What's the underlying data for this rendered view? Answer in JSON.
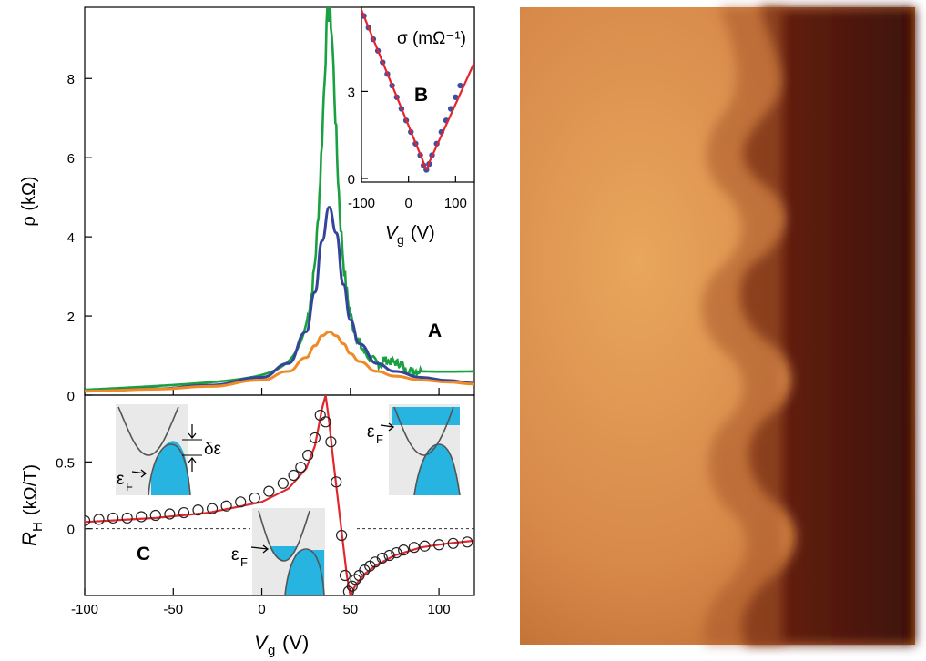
{
  "figure": {
    "photo_panel": {
      "description_colors": [
        "#e7a25a",
        "#b8652c",
        "#4a1508"
      ]
    }
  },
  "chart_data": [
    {
      "id": "A",
      "type": "line",
      "panel_label": "A",
      "xlabel": "",
      "ylabel": "ρ (kΩ)",
      "xlim": [
        -100,
        120
      ],
      "ylim": [
        0,
        9.8
      ],
      "yticks": [
        0,
        2,
        4,
        6,
        8
      ],
      "series": [
        {
          "color": "#19a040",
          "peak": [
            38,
            9.5
          ],
          "width_V": 5.5,
          "base": 0.12,
          "x": [
            -100,
            -60,
            -30,
            0,
            15,
            25,
            30,
            34,
            36,
            38,
            40,
            42,
            44,
            48,
            55,
            65,
            75,
            90,
            105,
            120
          ],
          "y": [
            0.08,
            0.14,
            0.22,
            0.35,
            0.55,
            0.9,
            1.6,
            3.4,
            5.8,
            9.5,
            7.0,
            4.2,
            2.6,
            1.6,
            0.9,
            0.55,
            0.6,
            0.45,
            0.38,
            0.32
          ]
        },
        {
          "color": "#33449a",
          "x": [
            -100,
            -60,
            -30,
            0,
            15,
            25,
            30,
            34,
            38,
            42,
            46,
            50,
            55,
            65,
            75,
            90,
            105,
            120
          ],
          "y": [
            0.1,
            0.16,
            0.25,
            0.45,
            0.8,
            1.6,
            2.6,
            3.9,
            4.75,
            4.1,
            2.8,
            1.9,
            1.3,
            0.8,
            0.6,
            0.45,
            0.37,
            0.3
          ]
        },
        {
          "color": "#f08a24",
          "x": [
            -100,
            -60,
            -30,
            0,
            15,
            25,
            30,
            34,
            38,
            42,
            46,
            50,
            55,
            65,
            75,
            90,
            105,
            120
          ],
          "y": [
            0.1,
            0.15,
            0.22,
            0.38,
            0.6,
            0.95,
            1.25,
            1.5,
            1.6,
            1.5,
            1.3,
            1.05,
            0.85,
            0.6,
            0.48,
            0.38,
            0.33,
            0.28
          ]
        }
      ]
    },
    {
      "id": "B",
      "type": "line",
      "panel_label": "B",
      "title": "σ (mΩ⁻¹)",
      "xlabel_main": "V",
      "xlabel_sub": "g",
      "xlabel_unit": "(V)",
      "xlim": [
        -100,
        140
      ],
      "ylim": [
        0,
        5.9
      ],
      "xticks": [
        -100,
        0,
        100
      ],
      "yticks": [
        0,
        3
      ],
      "series": [
        {
          "name": "fit",
          "color": "#e3262d",
          "x": [
            -100,
            38,
            140
          ],
          "y": [
            5.8,
            0.25,
            4.0
          ]
        },
        {
          "name": "data",
          "color": "#3a4fa8",
          "x": [
            -95,
            -85,
            -75,
            -65,
            -55,
            -45,
            -35,
            -25,
            -15,
            -5,
            5,
            15,
            25,
            32,
            38,
            44,
            50,
            60,
            70,
            80,
            90,
            100,
            110
          ],
          "y": [
            5.6,
            5.2,
            4.8,
            4.4,
            4.0,
            3.6,
            3.2,
            2.8,
            2.4,
            2.0,
            1.6,
            1.2,
            0.8,
            0.45,
            0.3,
            0.5,
            0.8,
            1.2,
            1.6,
            2.0,
            2.4,
            2.8,
            3.2
          ]
        }
      ]
    },
    {
      "id": "C",
      "type": "scatter",
      "panel_label": "C",
      "xlabel_main": "V",
      "xlabel_sub": "g",
      "xlabel_unit": "(V)",
      "ylabel_main": "R",
      "ylabel_sub": "H",
      "ylabel_unit": "(kΩ/T)",
      "xlim": [
        -100,
        120
      ],
      "ylim": [
        -0.5,
        1.0
      ],
      "xticks": [
        -100,
        -50,
        0,
        50,
        100
      ],
      "yticks": [
        0,
        0.5
      ],
      "points": {
        "x": [
          -100,
          -92,
          -84,
          -76,
          -68,
          -60,
          -52,
          -44,
          -36,
          -28,
          -20,
          -12,
          -4,
          4,
          12,
          18,
          22,
          26,
          30,
          33,
          36,
          39,
          42,
          45,
          47,
          49,
          51,
          53,
          55,
          58,
          61,
          64,
          68,
          72,
          76,
          80,
          86,
          92,
          100,
          108,
          116
        ],
        "y": [
          0.06,
          0.07,
          0.08,
          0.08,
          0.09,
          0.1,
          0.11,
          0.12,
          0.14,
          0.15,
          0.17,
          0.2,
          0.23,
          0.28,
          0.34,
          0.4,
          0.46,
          0.55,
          0.68,
          0.85,
          0.8,
          0.65,
          0.35,
          -0.05,
          -0.35,
          -0.47,
          -0.43,
          -0.38,
          -0.35,
          -0.31,
          -0.28,
          -0.25,
          -0.22,
          -0.2,
          -0.18,
          -0.16,
          -0.14,
          -0.13,
          -0.12,
          -0.11,
          -0.1
        ]
      },
      "fit": {
        "color": "#e3262d",
        "x": [
          -100,
          -60,
          -30,
          0,
          15,
          25,
          30,
          34,
          36,
          38,
          40,
          44,
          48,
          50,
          53,
          58,
          65,
          75,
          90,
          105,
          120
        ],
        "y": [
          0.05,
          0.08,
          0.12,
          0.2,
          0.3,
          0.45,
          0.62,
          0.9,
          1.0,
          0.8,
          0.55,
          0.1,
          -0.35,
          -0.5,
          -0.42,
          -0.34,
          -0.27,
          -0.2,
          -0.14,
          -0.11,
          -0.09
        ]
      },
      "insets": [
        {
          "label": "δε",
          "fermi": "ε",
          "fermi_sub": "F"
        },
        {
          "fermi": "ε",
          "fermi_sub": "F"
        },
        {
          "fermi": "ε",
          "fermi_sub": "F"
        }
      ]
    }
  ]
}
